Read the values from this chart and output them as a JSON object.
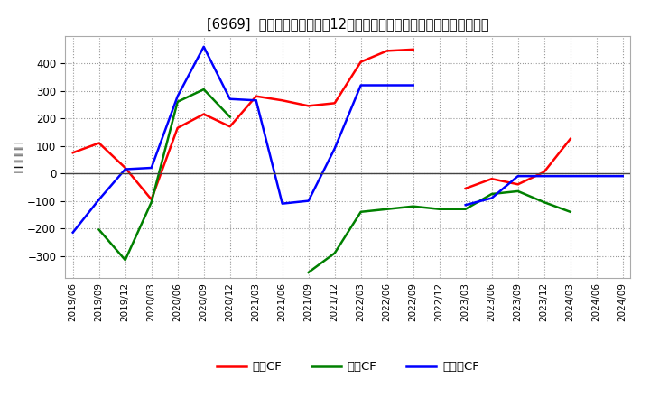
{
  "title": "[6969]  キャッシュフローの12か月移動合計の対前年同期増減額の推移",
  "ylabel": "（百万円）",
  "background_color": "#ffffff",
  "plot_bg_color": "#ffffff",
  "grid_color": "#999999",
  "x_labels": [
    "2019/06",
    "2019/09",
    "2019/12",
    "2020/03",
    "2020/06",
    "2020/09",
    "2020/12",
    "2021/03",
    "2021/06",
    "2021/09",
    "2021/12",
    "2022/03",
    "2022/06",
    "2022/09",
    "2022/12",
    "2023/03",
    "2023/06",
    "2023/09",
    "2023/12",
    "2024/03",
    "2024/06",
    "2024/09"
  ],
  "operating_cf": [
    75,
    110,
    20,
    -95,
    165,
    215,
    170,
    280,
    265,
    245,
    255,
    405,
    445,
    450,
    null,
    -55,
    -20,
    -40,
    5,
    125,
    null,
    null
  ],
  "investing_cf": [
    null,
    -205,
    -315,
    -105,
    260,
    305,
    205,
    null,
    null,
    -360,
    -290,
    -140,
    -130,
    -120,
    -130,
    -130,
    -75,
    -65,
    -105,
    -140,
    null,
    null
  ],
  "free_cf": [
    -215,
    -95,
    15,
    20,
    280,
    460,
    270,
    265,
    -110,
    -100,
    90,
    320,
    320,
    320,
    null,
    -115,
    -90,
    -10,
    -10,
    -10,
    -10,
    -10
  ],
  "ylim": [
    -380,
    500
  ],
  "yticks": [
    -300,
    -200,
    -100,
    0,
    100,
    200,
    300,
    400
  ],
  "operating_color": "#ff0000",
  "investing_color": "#008000",
  "free_color": "#0000ff",
  "line_width": 1.8,
  "legend_labels": [
    "営業CF",
    "投資CF",
    "フリーCF"
  ]
}
